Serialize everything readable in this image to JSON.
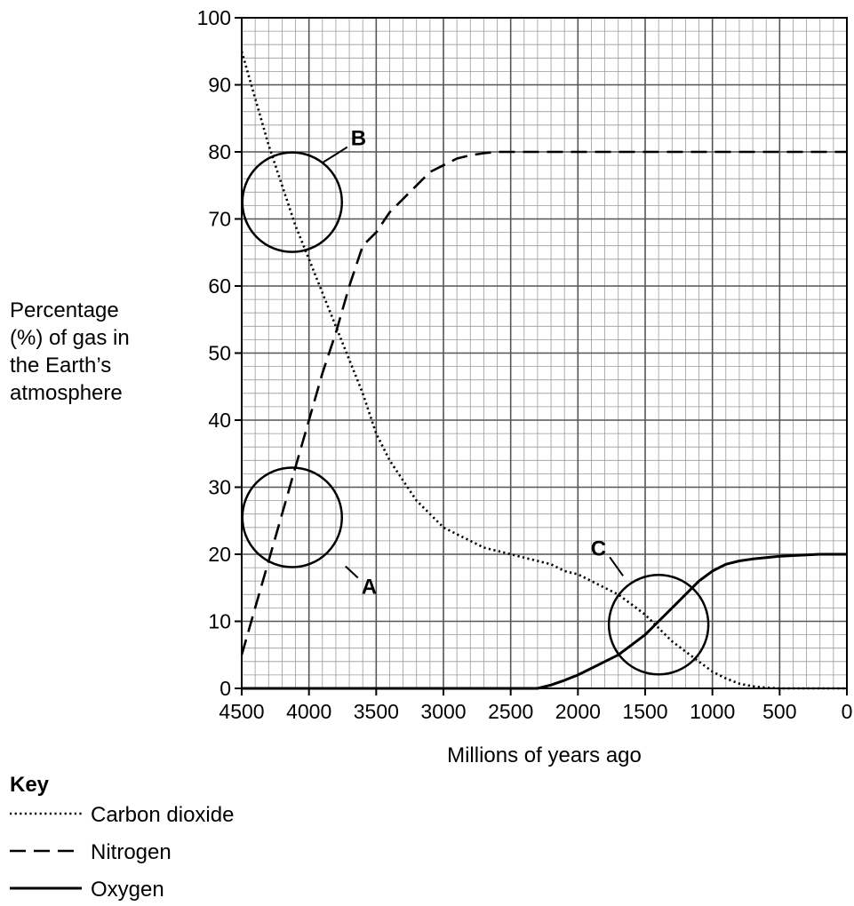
{
  "chart_data": {
    "type": "line",
    "xlabel": "Millions of years ago",
    "ylabel_lines": [
      "Percentage",
      "(%) of gas in",
      "the Earth’s",
      "atmosphere"
    ],
    "xlim": [
      4500,
      0
    ],
    "ylim": [
      0,
      100
    ],
    "x_ticks": [
      4500,
      4000,
      3500,
      3000,
      2500,
      2000,
      1500,
      1000,
      500,
      0
    ],
    "y_ticks": [
      0,
      10,
      20,
      30,
      40,
      50,
      60,
      70,
      80,
      90,
      100
    ],
    "grid": true,
    "x_reversed": true,
    "series": [
      {
        "name": "Carbon dioxide",
        "style": "dotted",
        "x": [
          4500,
          4400,
          4300,
          4200,
          4100,
          4000,
          3900,
          3800,
          3700,
          3600,
          3500,
          3400,
          3300,
          3200,
          3100,
          3000,
          2900,
          2800,
          2700,
          2600,
          2500,
          2400,
          2300,
          2200,
          2100,
          2000,
          1900,
          1800,
          1700,
          1600,
          1500,
          1400,
          1300,
          1200,
          1100,
          1000,
          900,
          800,
          700,
          600,
          500,
          400,
          300,
          200,
          100,
          0
        ],
        "values": [
          95,
          88,
          81,
          75,
          69,
          64,
          59,
          54,
          49,
          44,
          38,
          34,
          31,
          28,
          26,
          24,
          23,
          22,
          21,
          20.5,
          20,
          19.5,
          19,
          18.5,
          17.5,
          17,
          16,
          15,
          14,
          12.5,
          11,
          9,
          7,
          5.5,
          4,
          2.5,
          1.5,
          0.7,
          0.3,
          0.1,
          0,
          0,
          0,
          0,
          0,
          0
        ]
      },
      {
        "name": "Nitrogen",
        "style": "dashed",
        "x": [
          4500,
          4400,
          4300,
          4200,
          4100,
          4000,
          3900,
          3800,
          3700,
          3600,
          3500,
          3400,
          3300,
          3200,
          3100,
          3000,
          2900,
          2800,
          2700,
          2600,
          2500,
          2000,
          1500,
          1000,
          500,
          0
        ],
        "values": [
          5,
          12,
          19,
          26,
          33,
          40,
          47,
          53,
          60,
          66,
          68,
          71,
          73,
          75,
          77,
          78,
          79,
          79.5,
          79.8,
          80,
          80,
          80,
          80,
          80,
          80,
          80
        ]
      },
      {
        "name": "Oxygen",
        "style": "solid",
        "x": [
          4500,
          4000,
          3500,
          3000,
          2500,
          2300,
          2200,
          2100,
          2000,
          1900,
          1800,
          1700,
          1600,
          1500,
          1400,
          1300,
          1200,
          1100,
          1000,
          900,
          800,
          700,
          600,
          500,
          400,
          300,
          200,
          100,
          0
        ],
        "values": [
          0,
          0,
          0,
          0,
          0,
          0,
          0.5,
          1.2,
          2,
          3,
          4,
          5,
          6.5,
          8,
          10,
          12,
          14,
          16,
          17.5,
          18.5,
          19,
          19.3,
          19.5,
          19.7,
          19.8,
          19.9,
          20,
          20,
          20
        ]
      }
    ],
    "annotations": [
      {
        "label": "A",
        "cx": 4125,
        "cy": 25.5
      },
      {
        "label": "B",
        "cx": 4125,
        "cy": 72.5
      },
      {
        "label": "C",
        "cx": 1400,
        "cy": 9.5
      }
    ],
    "key_title": "Key",
    "key_entries": [
      "Carbon dioxide",
      "Nitrogen",
      "Oxygen"
    ]
  }
}
